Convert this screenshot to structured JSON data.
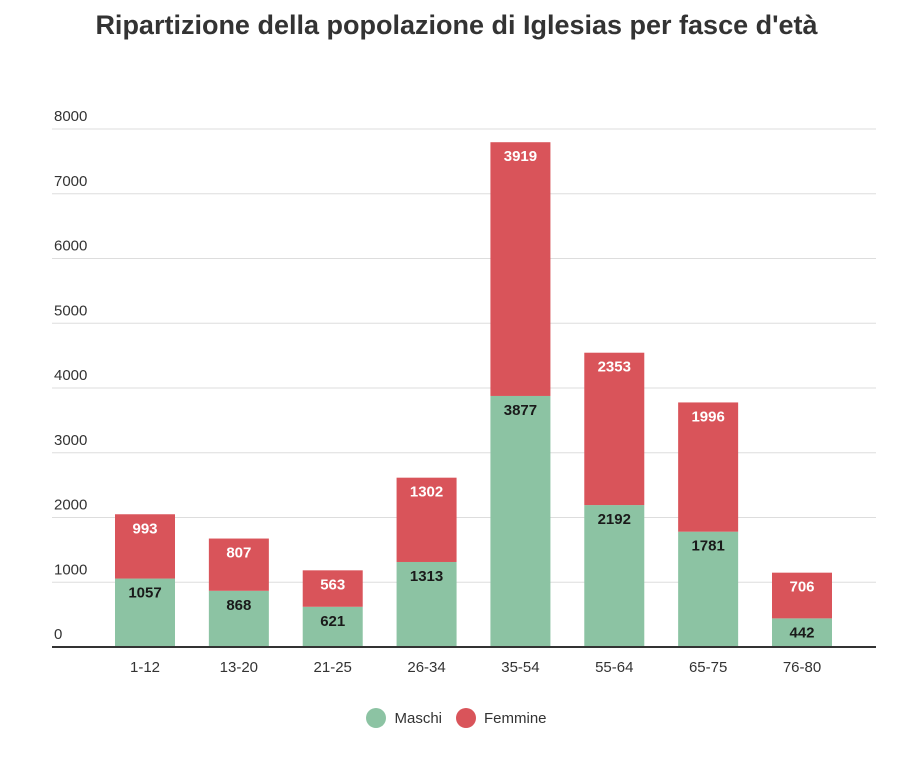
{
  "chart_data": {
    "type": "bar",
    "stacked": true,
    "title": "Ripartizione della popolazione di Iglesias per fasce d'età",
    "xlabel": "",
    "ylabel": "",
    "ylim": [
      0,
      8000
    ],
    "yticks": [
      0,
      1000,
      2000,
      3000,
      4000,
      5000,
      6000,
      7000,
      8000
    ],
    "grid": true,
    "legend_position": "bottom",
    "categories": [
      "1-12",
      "13-20",
      "21-25",
      "26-34",
      "35-54",
      "55-64",
      "65-75",
      "76-80"
    ],
    "series": [
      {
        "name": "Maschi",
        "color": "#8cc3a3",
        "label_color": "#1a1a1a",
        "values": [
          1057,
          868,
          621,
          1313,
          3877,
          2192,
          1781,
          442
        ]
      },
      {
        "name": "Femmine",
        "color": "#d9545a",
        "label_color": "#ffffff",
        "values": [
          993,
          807,
          563,
          1302,
          3919,
          2353,
          1996,
          706
        ]
      }
    ]
  }
}
